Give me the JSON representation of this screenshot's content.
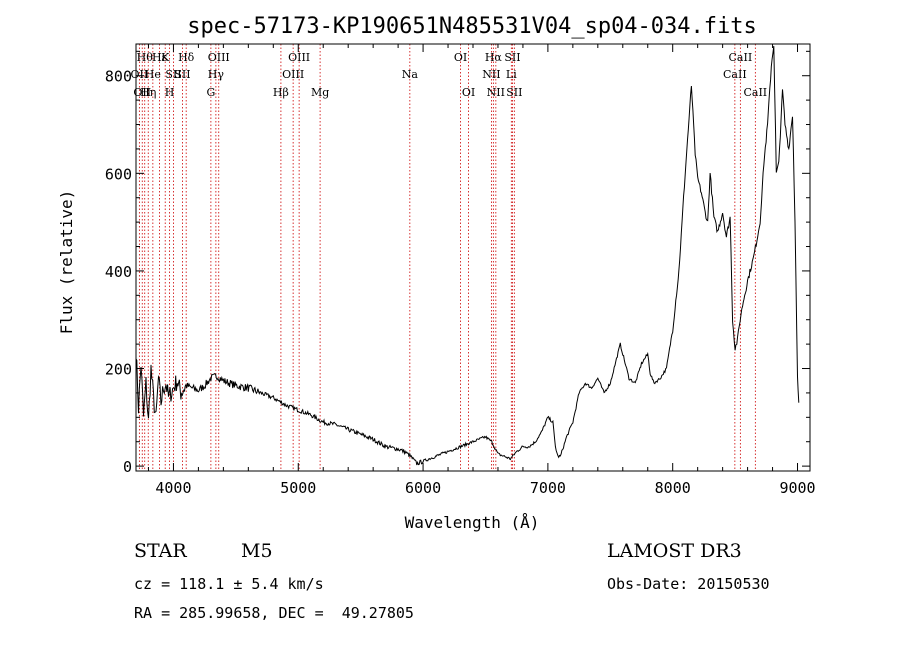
{
  "chart_data": {
    "type": "line",
    "title": "spec-57173-KP190651N485531V04_sp04-034.fits",
    "xlabel": "Wavelength (Å)",
    "ylabel": "Flux (relative)",
    "xlim": [
      3700,
      9100
    ],
    "ylim": [
      -10,
      865
    ],
    "x_ticks": [
      4000,
      5000,
      6000,
      7000,
      8000,
      9000
    ],
    "y_ticks": [
      0,
      200,
      400,
      600,
      800
    ],
    "spectrum": {
      "name": "flux",
      "x": [
        3700,
        3720,
        3740,
        3760,
        3780,
        3800,
        3820,
        3840,
        3860,
        3880,
        3900,
        3920,
        3940,
        3960,
        3980,
        4000,
        4030,
        4060,
        4100,
        4150,
        4200,
        4250,
        4300,
        4350,
        4400,
        4450,
        4500,
        4600,
        4700,
        4800,
        4900,
        5000,
        5100,
        5200,
        5300,
        5400,
        5500,
        5600,
        5700,
        5800,
        5850,
        5900,
        5950,
        6000,
        6050,
        6100,
        6200,
        6300,
        6400,
        6500,
        6550,
        6600,
        6650,
        6700,
        6750,
        6800,
        6850,
        6900,
        6950,
        7000,
        7040,
        7060,
        7080,
        7100,
        7150,
        7200,
        7250,
        7300,
        7350,
        7400,
        7450,
        7500,
        7550,
        7580,
        7600,
        7650,
        7700,
        7750,
        7800,
        7820,
        7850,
        7900,
        7950,
        8000,
        8050,
        8100,
        8150,
        8180,
        8200,
        8230,
        8260,
        8280,
        8300,
        8330,
        8360,
        8400,
        8430,
        8460,
        8480,
        8500,
        8520,
        8540,
        8560,
        8600,
        8650,
        8700,
        8730,
        8760,
        8790,
        8810,
        8830,
        8850,
        8880,
        8900,
        8930,
        8960,
        8980,
        9000,
        9010
      ],
      "values": [
        240,
        120,
        210,
        100,
        170,
        90,
        200,
        140,
        95,
        180,
        130,
        160,
        170,
        140,
        150,
        160,
        175,
        150,
        165,
        160,
        155,
        165,
        180,
        185,
        175,
        170,
        165,
        160,
        150,
        140,
        125,
        115,
        105,
        90,
        85,
        75,
        65,
        55,
        40,
        35,
        30,
        20,
        5,
        10,
        15,
        20,
        30,
        40,
        50,
        60,
        50,
        25,
        20,
        15,
        30,
        40,
        40,
        50,
        70,
        100,
        90,
        40,
        20,
        20,
        60,
        90,
        150,
        170,
        160,
        180,
        150,
        170,
        220,
        250,
        230,
        180,
        170,
        210,
        230,
        190,
        170,
        180,
        200,
        280,
        400,
        600,
        780,
        640,
        590,
        560,
        520,
        500,
        600,
        510,
        480,
        520,
        470,
        510,
        300,
        240,
        260,
        300,
        330,
        380,
        430,
        500,
        620,
        700,
        820,
        865,
        600,
        620,
        770,
        700,
        650,
        720,
        500,
        180,
        130
      ],
      "color": "#000000"
    },
    "line_markers": {
      "color": "#cc0000",
      "lines": [
        {
          "x": 3727,
          "label": "OII",
          "row": 1
        },
        {
          "x": 3750,
          "label": "OII",
          "row": 2
        },
        {
          "x": 3770,
          "label": "Hθ",
          "row": 0
        },
        {
          "x": 3798,
          "label": "Hη",
          "row": 2
        },
        {
          "x": 3835,
          "label": "He",
          "row": 1
        },
        {
          "x": 3889,
          "label": "Hε",
          "row": 0
        },
        {
          "x": 3934,
          "label": "K",
          "row": 0
        },
        {
          "x": 3969,
          "label": "H",
          "row": 2
        },
        {
          "x": 4000,
          "label": "SII",
          "row": 1
        },
        {
          "x": 4072,
          "label": "SII",
          "row": 1
        },
        {
          "x": 4102,
          "label": "Hδ",
          "row": 0
        },
        {
          "x": 4300,
          "label": "G",
          "row": 2
        },
        {
          "x": 4340,
          "label": "Hγ",
          "row": 1
        },
        {
          "x": 4363,
          "label": "OIII",
          "row": 0
        },
        {
          "x": 4861,
          "label": "Hβ",
          "row": 2
        },
        {
          "x": 4959,
          "label": "OIII",
          "row": 1
        },
        {
          "x": 5007,
          "label": "OIII",
          "row": 0
        },
        {
          "x": 5175,
          "label": "Mg",
          "row": 2
        },
        {
          "x": 5894,
          "label": "Na",
          "row": 1
        },
        {
          "x": 6300,
          "label": "OI",
          "row": 0
        },
        {
          "x": 6364,
          "label": "OI",
          "row": 2
        },
        {
          "x": 6548,
          "label": "NII",
          "row": 1
        },
        {
          "x": 6563,
          "label": "Hα",
          "row": 0
        },
        {
          "x": 6583,
          "label": "NII",
          "row": 2
        },
        {
          "x": 6707,
          "label": "Li",
          "row": 1
        },
        {
          "x": 6716,
          "label": "SII",
          "row": 0
        },
        {
          "x": 6731,
          "label": "SII",
          "row": 2
        },
        {
          "x": 8498,
          "label": "CaII",
          "row": 1
        },
        {
          "x": 8542,
          "label": "CaII",
          "row": 0
        },
        {
          "x": 8662,
          "label": "CaII",
          "row": 2
        }
      ]
    }
  },
  "info": {
    "object_type": "STAR",
    "subclass": "M5",
    "survey": "LAMOST DR3",
    "cz": "cz = 118.1 ± 5.4 km/s",
    "obs_date": "Obs-Date: 20150530",
    "coords": "RA = 285.99658, DEC =  49.27805"
  }
}
